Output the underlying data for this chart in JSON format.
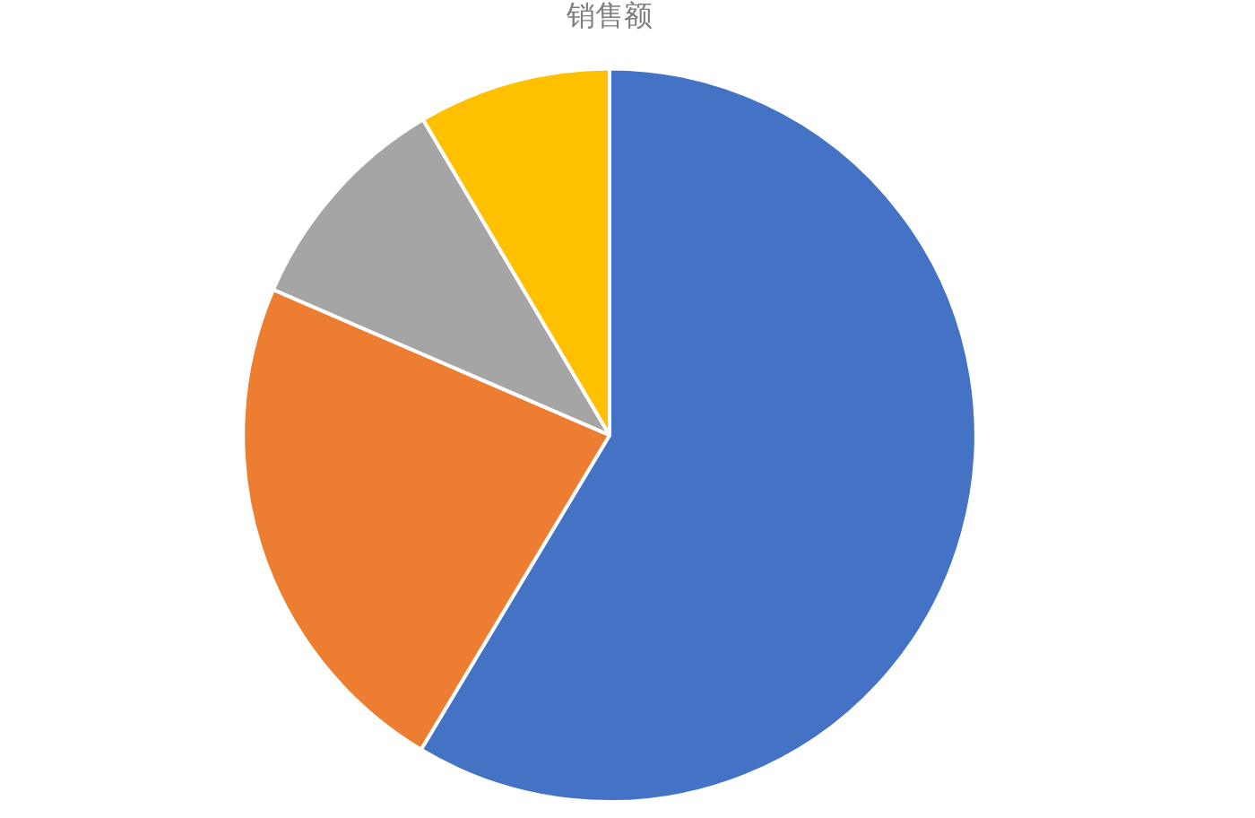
{
  "chart_data": {
    "type": "pie",
    "title": "销售额",
    "categories": [
      null,
      null,
      null,
      null
    ],
    "values": [
      58.6,
      22.9,
      10.0,
      8.5
    ],
    "colors": [
      "#4472c4",
      "#ed7d31",
      "#a5a5a5",
      "#ffc000"
    ],
    "legend": false
  }
}
